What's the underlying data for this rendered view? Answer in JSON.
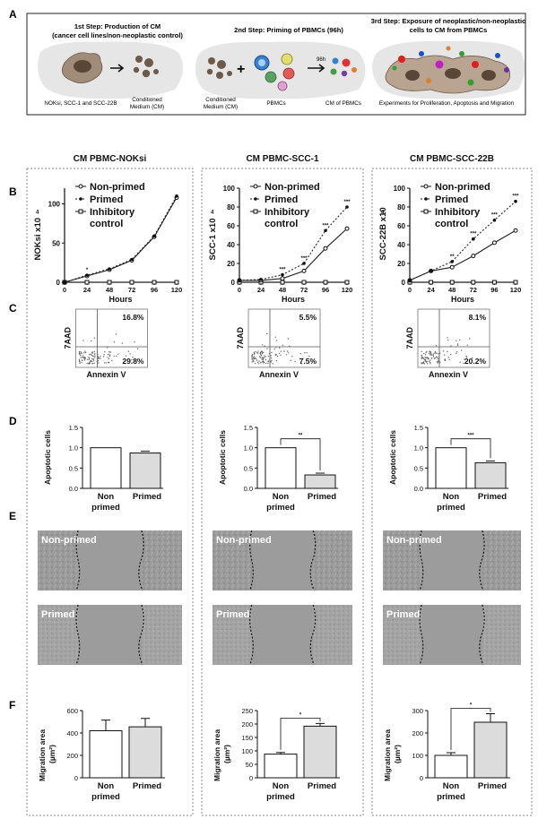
{
  "panel_letters": [
    "A",
    "B",
    "C",
    "D",
    "E",
    "F"
  ],
  "schematic": {
    "step1": {
      "title": "1st Step: Production of CM",
      "subtitle": "(cancer cell lines/non-neoplastic control)",
      "caption_left": "NOKsi, SCC-1 and SCC-22B",
      "caption_right_1": "Conditioned",
      "caption_right_2": "Medium (CM)"
    },
    "step2": {
      "title": "2nd Step: Priming of PBMCs (96h)",
      "caption_cm_1": "Conditioned",
      "caption_cm_2": "Medium (CM)",
      "caption_pbmc": "PBMCs",
      "time_label": "96h",
      "caption_result": "CM of PBMCs"
    },
    "step3": {
      "title_1": "3rd Step: Exposure of neoplastic/non-neoplastic",
      "title_2": "cells to CM from PBMCs",
      "caption": "Experiments for Proliferation, Apoptosis and Migration"
    },
    "colors": {
      "cell": "#a08c78",
      "nucleus": "#5a4636",
      "cm_dot": "#6e5a4b",
      "bg": "#e6e6e6"
    }
  },
  "columns": [
    {
      "title": "CM PBMC-NOKsi",
      "proliferation": {
        "ylabel": "NOKsi x10",
        "ylabel_sup": "4",
        "xlabel": "Hours",
        "legend": [
          "Non-primed",
          "Primed",
          "Inhibitory",
          "control"
        ],
        "ymax": 120,
        "yticks": [
          "0",
          "50",
          "100"
        ],
        "ytick_values": [
          0,
          50,
          100
        ],
        "xticks": [
          "0",
          "24",
          "48",
          "72",
          "96",
          "120"
        ],
        "non_primed": [
          0,
          8,
          16,
          28,
          58,
          108
        ],
        "primed": [
          0,
          9,
          17,
          29,
          59,
          110
        ],
        "inhibitory": [
          0,
          0,
          0,
          0,
          0,
          0
        ],
        "stars": [
          "",
          "*",
          "",
          "",
          "",
          ""
        ]
      },
      "flow": {
        "upper_right": "16.8%",
        "lower_right": "29.8%",
        "ylabel": "7AAD",
        "xlabel": "Annexin V"
      },
      "apoptosis": {
        "ylabel": "Apoptotic cells",
        "ymax": 1.5,
        "yticks": [
          "0.0",
          "0.5",
          "1.0",
          "1.5"
        ],
        "values": [
          1.0,
          0.87
        ],
        "categories": [
          "Non primed",
          "Primed"
        ],
        "sig": ""
      },
      "scratch": {
        "label_top": "Non-primed",
        "label_bottom": "Primed"
      },
      "migration": {
        "ylabel": "Migration area",
        "ylabel_unit": "(µm²)",
        "ymax": 600,
        "yticks": [
          "0",
          "200",
          "400",
          "600"
        ],
        "ytick_values": [
          0,
          200,
          400,
          600
        ],
        "values": [
          420,
          455
        ],
        "errors": [
          95,
          75
        ],
        "categories": [
          "Non primed",
          "Primed"
        ],
        "sig": ""
      }
    },
    {
      "title": "CM PBMC-SCC-1",
      "proliferation": {
        "ylabel": "SCC-1 x10",
        "ylabel_sup": "4",
        "xlabel": "Hours",
        "legend": [
          "Non-primed",
          "Primed",
          "Inhibitory",
          "control"
        ],
        "ymax": 100,
        "yticks": [
          "0",
          "20",
          "40",
          "60",
          "80",
          "100"
        ],
        "ytick_values": [
          0,
          20,
          40,
          60,
          80,
          100
        ],
        "xticks": [
          "0",
          "24",
          "48",
          "72",
          "96",
          "120"
        ],
        "non_primed": [
          2,
          2,
          4,
          12,
          36,
          57
        ],
        "primed": [
          2,
          3,
          8,
          20,
          55,
          80
        ],
        "inhibitory": [
          0,
          0,
          0,
          0,
          0,
          0
        ],
        "stars": [
          "",
          "",
          "***",
          "***",
          "***",
          "***"
        ]
      },
      "flow": {
        "upper_right": "5.5%",
        "lower_right": "7.5%",
        "ylabel": "7AAD",
        "xlabel": "Annexin V"
      },
      "apoptosis": {
        "ylabel": "Apoptotic cells",
        "ymax": 1.5,
        "yticks": [
          "0.0",
          "0.5",
          "1.0",
          "1.5"
        ],
        "values": [
          1.0,
          0.33
        ],
        "categories": [
          "Non primed",
          "Primed"
        ],
        "sig": "**"
      },
      "scratch": {
        "label_top": "Non-primed",
        "label_bottom": "Primed"
      },
      "migration": {
        "ylabel": "Migration area",
        "ylabel_unit": "(µm²)",
        "ymax": 250,
        "yticks": [
          "0",
          "50",
          "100",
          "150",
          "200",
          "250"
        ],
        "ytick_values": [
          0,
          50,
          100,
          150,
          200,
          250
        ],
        "values": [
          88,
          192
        ],
        "errors": [
          6,
          10
        ],
        "categories": [
          "Non primed",
          "Primed"
        ],
        "sig": "*"
      }
    },
    {
      "title": "CM PBMC-SCC-22B",
      "proliferation": {
        "ylabel": "SCC-22B x10",
        "ylabel_sup": "4",
        "xlabel": "Hours",
        "legend": [
          "Non-primed",
          "Primed",
          "Inhibitory",
          "control"
        ],
        "ymax": 100,
        "yticks": [
          "0",
          "20",
          "40",
          "60",
          "80",
          "100"
        ],
        "ytick_values": [
          0,
          20,
          40,
          60,
          80,
          100
        ],
        "xticks": [
          "0",
          "24",
          "48",
          "72",
          "96",
          "120"
        ],
        "non_primed": [
          2,
          12,
          16,
          28,
          42,
          55
        ],
        "primed": [
          2,
          12,
          22,
          46,
          66,
          86
        ],
        "inhibitory": [
          0,
          0,
          0,
          0,
          0,
          0
        ],
        "stars": [
          "",
          "",
          "**",
          "***",
          "***",
          "***"
        ]
      },
      "flow": {
        "upper_right": "8.1%",
        "lower_right": "20.2%",
        "ylabel": "7AAD",
        "xlabel": "Annexin V"
      },
      "apoptosis": {
        "ylabel": "Apoptotic cells",
        "ymax": 1.5,
        "yticks": [
          "0.0",
          "0.5",
          "1.0",
          "1.5"
        ],
        "values": [
          1.0,
          0.63
        ],
        "categories": [
          "Non primed",
          "Primed"
        ],
        "sig": "***"
      },
      "scratch": {
        "label_top": "Non-primed",
        "label_bottom": "Primed"
      },
      "migration": {
        "ylabel": "Migration area",
        "ylabel_unit": "(µm²)",
        "ymax": 300,
        "yticks": [
          "0",
          "100",
          "200",
          "300"
        ],
        "ytick_values": [
          0,
          100,
          200,
          300
        ],
        "values": [
          100,
          248
        ],
        "errors": [
          12,
          38
        ],
        "categories": [
          "Non primed",
          "Primed"
        ],
        "sig": "*"
      }
    }
  ],
  "chart_data": [
    {
      "type": "line",
      "title": "CM PBMC-NOKsi",
      "xlabel": "Hours",
      "ylabel": "NOKsi x10^4",
      "x": [
        0,
        24,
        48,
        72,
        96,
        120
      ],
      "ylim": [
        0,
        120
      ],
      "series": [
        {
          "name": "Non-primed",
          "values": [
            0,
            8,
            16,
            28,
            58,
            108
          ]
        },
        {
          "name": "Primed",
          "values": [
            0,
            9,
            17,
            29,
            59,
            110
          ]
        },
        {
          "name": "Inhibitory control",
          "values": [
            0,
            0,
            0,
            0,
            0,
            0
          ]
        }
      ]
    },
    {
      "type": "line",
      "title": "CM PBMC-SCC-1",
      "xlabel": "Hours",
      "ylabel": "SCC-1 x10^4",
      "x": [
        0,
        24,
        48,
        72,
        96,
        120
      ],
      "ylim": [
        0,
        100
      ],
      "series": [
        {
          "name": "Non-primed",
          "values": [
            2,
            2,
            4,
            12,
            36,
            57
          ]
        },
        {
          "name": "Primed",
          "values": [
            2,
            3,
            8,
            20,
            55,
            80
          ]
        },
        {
          "name": "Inhibitory control",
          "values": [
            0,
            0,
            0,
            0,
            0,
            0
          ]
        }
      ]
    },
    {
      "type": "line",
      "title": "CM PBMC-SCC-22B",
      "xlabel": "Hours",
      "ylabel": "SCC-22B x10^4",
      "x": [
        0,
        24,
        48,
        72,
        96,
        120
      ],
      "ylim": [
        0,
        100
      ],
      "series": [
        {
          "name": "Non-primed",
          "values": [
            2,
            12,
            16,
            28,
            42,
            55
          ]
        },
        {
          "name": "Primed",
          "values": [
            2,
            12,
            22,
            46,
            66,
            86
          ]
        },
        {
          "name": "Inhibitory control",
          "values": [
            0,
            0,
            0,
            0,
            0,
            0
          ]
        }
      ]
    },
    {
      "type": "bar",
      "ylabel": "Apoptotic cells",
      "categories": [
        "Non primed",
        "Primed"
      ],
      "values": [
        1.0,
        0.87
      ],
      "ylim": [
        0,
        1.5
      ]
    },
    {
      "type": "bar",
      "ylabel": "Apoptotic cells",
      "categories": [
        "Non primed",
        "Primed"
      ],
      "values": [
        1.0,
        0.33
      ],
      "ylim": [
        0,
        1.5
      ]
    },
    {
      "type": "bar",
      "ylabel": "Apoptotic cells",
      "categories": [
        "Non primed",
        "Primed"
      ],
      "values": [
        1.0,
        0.63
      ],
      "ylim": [
        0,
        1.5
      ]
    },
    {
      "type": "bar",
      "ylabel": "Migration area (µm²)",
      "categories": [
        "Non primed",
        "Primed"
      ],
      "values": [
        420,
        455
      ],
      "ylim": [
        0,
        600
      ]
    },
    {
      "type": "bar",
      "ylabel": "Migration area (µm²)",
      "categories": [
        "Non primed",
        "Primed"
      ],
      "values": [
        88,
        192
      ],
      "ylim": [
        0,
        250
      ]
    },
    {
      "type": "bar",
      "ylabel": "Migration area (µm²)",
      "categories": [
        "Non primed",
        "Primed"
      ],
      "values": [
        100,
        248
      ],
      "ylim": [
        0,
        300
      ]
    }
  ]
}
